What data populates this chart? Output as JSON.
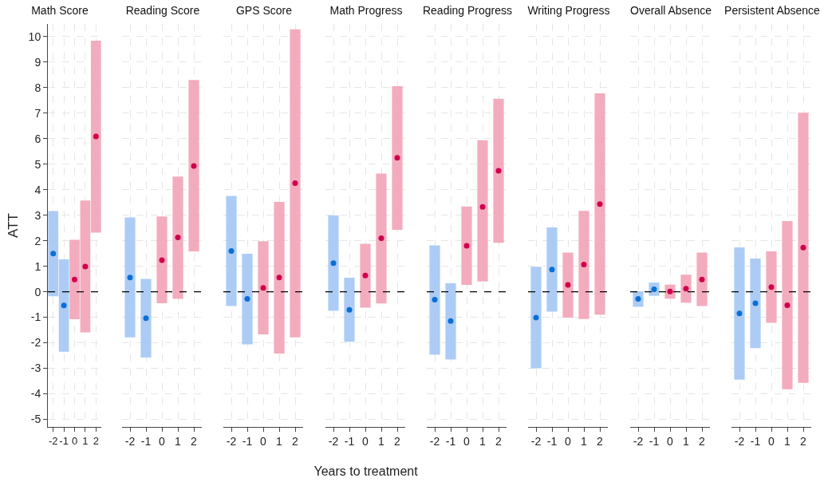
{
  "chart_data": [
    {
      "type": "bar",
      "title": "Math Score",
      "ylabel": "ATT",
      "categories": [
        "-2",
        "-1",
        "0",
        "1",
        "2"
      ],
      "ylim": [
        -5.3,
        10.5
      ],
      "yticks": [
        -5,
        -4,
        -3,
        -2,
        -1,
        0,
        1,
        2,
        3,
        4,
        5,
        6,
        7,
        8,
        9,
        10
      ],
      "grid": true,
      "ref_lines": [
        {
          "axis": "y",
          "value": 0,
          "color": "#000000",
          "line_style": "dashed"
        }
      ],
      "series": [
        {
          "type": "bar",
          "base": [
            -0.18,
            -2.35,
            -1.08,
            -1.59,
            2.32
          ],
          "values": [
            3.34,
            3.62,
            3.12,
            5.17,
            7.52
          ],
          "colors": [
            "#a3c6f4",
            "#a3c6f4",
            "#f2a3b6",
            "#f2a3b6",
            "#f2a3b6"
          ]
        },
        {
          "type": "scatter",
          "marker": "circle",
          "x": [
            "-2",
            "-1",
            "0",
            "1",
            "2"
          ],
          "values": [
            1.5,
            -0.54,
            0.48,
            0.99,
            6.09
          ],
          "colors": [
            "#0a6fd6",
            "#0a6fd6",
            "#d1004c",
            "#d1004c",
            "#d1004c"
          ]
        }
      ]
    },
    {
      "type": "bar",
      "title": "Reading Score",
      "tick_labels": "x",
      "categories": [
        "-2",
        "-1",
        "0",
        "1",
        "2"
      ],
      "ylim": [
        -5.3,
        10.5
      ],
      "yticks": [
        -5,
        -4,
        -3,
        -2,
        -1,
        0,
        1,
        2,
        3,
        4,
        5,
        6,
        7,
        8,
        9,
        10
      ],
      "grid": true,
      "ref_lines": [
        {
          "axis": "y",
          "value": 0,
          "color": "#000000",
          "line_style": "dashed"
        }
      ],
      "series": [
        {
          "type": "bar",
          "base": [
            -1.79,
            -2.58,
            -0.45,
            -0.28,
            1.58
          ],
          "values": [
            4.7,
            3.08,
            3.4,
            4.8,
            6.72
          ],
          "colors": [
            "#a3c6f4",
            "#a3c6f4",
            "#f2a3b6",
            "#f2a3b6",
            "#f2a3b6"
          ]
        },
        {
          "type": "scatter",
          "marker": "circle",
          "x": [
            "-2",
            "-1",
            "0",
            "1",
            "2"
          ],
          "values": [
            0.56,
            -1.04,
            1.24,
            2.13,
            4.93
          ],
          "colors": [
            "#0a6fd6",
            "#0a6fd6",
            "#d1004c",
            "#d1004c",
            "#d1004c"
          ]
        }
      ]
    },
    {
      "type": "bar",
      "title": "GPS Score",
      "tick_labels": "x",
      "categories": [
        "-2",
        "-1",
        "0",
        "1",
        "2"
      ],
      "ylim": [
        -5.3,
        10.5
      ],
      "yticks": [
        -5,
        -4,
        -3,
        -2,
        -1,
        0,
        1,
        2,
        3,
        4,
        5,
        6,
        7,
        8,
        9,
        10
      ],
      "grid": true,
      "ref_lines": [
        {
          "axis": "y",
          "value": 0,
          "color": "#000000",
          "line_style": "dashed"
        }
      ],
      "series": [
        {
          "type": "bar",
          "base": [
            -0.56,
            -2.06,
            -1.67,
            -2.42,
            -1.79
          ],
          "values": [
            4.32,
            3.55,
            3.65,
            5.94,
            12.08
          ],
          "colors": [
            "#a3c6f4",
            "#a3c6f4",
            "#f2a3b6",
            "#f2a3b6",
            "#f2a3b6"
          ]
        },
        {
          "type": "scatter",
          "marker": "circle",
          "x": [
            "-2",
            "-1",
            "0",
            "1",
            "2"
          ],
          "values": [
            1.6,
            -0.28,
            0.15,
            0.56,
            4.26
          ],
          "colors": [
            "#0a6fd6",
            "#0a6fd6",
            "#d1004c",
            "#d1004c",
            "#d1004c"
          ]
        }
      ]
    },
    {
      "type": "bar",
      "title": "Math Progress",
      "xlabel": "Years to treatment",
      "tick_labels": "x",
      "categories": [
        "-2",
        "-1",
        "0",
        "1",
        "2"
      ],
      "ylim": [
        -5.3,
        10.5
      ],
      "yticks": [
        -5,
        -4,
        -3,
        -2,
        -1,
        0,
        1,
        2,
        3,
        4,
        5,
        6,
        7,
        8,
        9,
        10
      ],
      "grid": true,
      "ref_lines": [
        {
          "axis": "y",
          "value": 0,
          "color": "#000000",
          "line_style": "dashed"
        }
      ],
      "series": [
        {
          "type": "bar",
          "base": [
            -0.75,
            -1.96,
            -0.62,
            -0.46,
            2.43
          ],
          "values": [
            3.74,
            2.51,
            2.5,
            5.09,
            5.63
          ],
          "colors": [
            "#a3c6f4",
            "#a3c6f4",
            "#f2a3b6",
            "#f2a3b6",
            "#f2a3b6"
          ]
        },
        {
          "type": "scatter",
          "marker": "circle",
          "x": [
            "-2",
            "-1",
            "0",
            "1",
            "2"
          ],
          "values": [
            1.12,
            -0.71,
            0.64,
            2.1,
            5.25
          ],
          "colors": [
            "#0a6fd6",
            "#0a6fd6",
            "#d1004c",
            "#d1004c",
            "#d1004c"
          ]
        }
      ]
    },
    {
      "type": "bar",
      "title": "Reading Progress",
      "tick_labels": "x",
      "categories": [
        "-2",
        "-1",
        "0",
        "1",
        "2"
      ],
      "ylim": [
        -5.3,
        10.5
      ],
      "yticks": [
        -5,
        -4,
        -3,
        -2,
        -1,
        0,
        1,
        2,
        3,
        4,
        5,
        6,
        7,
        8,
        9,
        10
      ],
      "grid": true,
      "ref_lines": [
        {
          "axis": "y",
          "value": 0,
          "color": "#000000",
          "line_style": "dashed"
        }
      ],
      "series": [
        {
          "type": "bar",
          "base": [
            -2.47,
            -2.66,
            0.27,
            0.4,
            1.92
          ],
          "values": [
            4.29,
            2.99,
            3.07,
            5.54,
            5.65
          ],
          "colors": [
            "#a3c6f4",
            "#a3c6f4",
            "#f2a3b6",
            "#f2a3b6",
            "#f2a3b6"
          ]
        },
        {
          "type": "scatter",
          "marker": "circle",
          "x": [
            "-2",
            "-1",
            "0",
            "1",
            "2"
          ],
          "values": [
            -0.31,
            -1.15,
            1.8,
            3.33,
            4.74
          ],
          "colors": [
            "#0a6fd6",
            "#0a6fd6",
            "#d1004c",
            "#d1004c",
            "#d1004c"
          ]
        }
      ]
    },
    {
      "type": "bar",
      "title": "Writing Progress",
      "tick_labels": "x",
      "categories": [
        "-2",
        "-1",
        "0",
        "1",
        "2"
      ],
      "ylim": [
        -5.3,
        10.5
      ],
      "yticks": [
        -5,
        -4,
        -3,
        -2,
        -1,
        0,
        1,
        2,
        3,
        4,
        5,
        6,
        7,
        8,
        9,
        10
      ],
      "grid": true,
      "ref_lines": [
        {
          "axis": "y",
          "value": 0,
          "color": "#000000",
          "line_style": "dashed"
        }
      ],
      "series": [
        {
          "type": "bar",
          "base": [
            -3.0,
            -0.78,
            -1.01,
            -1.07,
            -0.9
          ],
          "values": [
            3.98,
            3.3,
            2.55,
            4.24,
            8.68
          ],
          "colors": [
            "#a3c6f4",
            "#a3c6f4",
            "#f2a3b6",
            "#f2a3b6",
            "#f2a3b6"
          ]
        },
        {
          "type": "scatter",
          "marker": "circle",
          "x": [
            "-2",
            "-1",
            "0",
            "1",
            "2"
          ],
          "values": [
            -1.01,
            0.87,
            0.27,
            1.07,
            3.44
          ],
          "colors": [
            "#0a6fd6",
            "#0a6fd6",
            "#d1004c",
            "#d1004c",
            "#d1004c"
          ]
        }
      ]
    },
    {
      "type": "bar",
      "title": "Overall Absence",
      "tick_labels": "x",
      "categories": [
        "-2",
        "-1",
        "0",
        "1",
        "2"
      ],
      "ylim": [
        -5.3,
        10.5
      ],
      "yticks": [
        -5,
        -4,
        -3,
        -2,
        -1,
        0,
        1,
        2,
        3,
        4,
        5,
        6,
        7,
        8,
        9,
        10
      ],
      "grid": true,
      "ref_lines": [
        {
          "axis": "y",
          "value": 0,
          "color": "#000000",
          "line_style": "dashed"
        }
      ],
      "series": [
        {
          "type": "bar",
          "base": [
            -0.59,
            -0.16,
            -0.27,
            -0.43,
            -0.56
          ],
          "values": [
            0.61,
            0.52,
            0.55,
            1.1,
            2.1
          ],
          "colors": [
            "#a3c6f4",
            "#a3c6f4",
            "#f2a3b6",
            "#f2a3b6",
            "#f2a3b6"
          ]
        },
        {
          "type": "scatter",
          "marker": "circle",
          "x": [
            "-2",
            "-1",
            "0",
            "1",
            "2"
          ],
          "values": [
            -0.28,
            0.1,
            0.01,
            0.12,
            0.48
          ],
          "colors": [
            "#0a6fd6",
            "#0a6fd6",
            "#d1004c",
            "#d1004c",
            "#d1004c"
          ]
        }
      ]
    },
    {
      "type": "bar",
      "title": "Persistent Absence",
      "tick_labels": "x",
      "categories": [
        "-2",
        "-1",
        "0",
        "1",
        "2"
      ],
      "ylim": [
        -5.3,
        10.5
      ],
      "yticks": [
        -5,
        -4,
        -3,
        -2,
        -1,
        0,
        1,
        2,
        3,
        4,
        5,
        6,
        7,
        8,
        9,
        10
      ],
      "grid": true,
      "ref_lines": [
        {
          "axis": "y",
          "value": 0,
          "color": "#000000",
          "line_style": "dashed"
        }
      ],
      "series": [
        {
          "type": "bar",
          "base": [
            -3.45,
            -2.21,
            -1.22,
            -3.82,
            -3.57
          ],
          "values": [
            5.19,
            3.51,
            2.8,
            6.59,
            10.59
          ],
          "colors": [
            "#a3c6f4",
            "#a3c6f4",
            "#f2a3b6",
            "#f2a3b6",
            "#f2a3b6"
          ]
        },
        {
          "type": "scatter",
          "marker": "circle",
          "x": [
            "-2",
            "-1",
            "0",
            "1",
            "2"
          ],
          "values": [
            -0.85,
            -0.45,
            0.18,
            -0.53,
            1.73
          ],
          "colors": [
            "#0a6fd6",
            "#0a6fd6",
            "#d1004c",
            "#d1004c",
            "#d1004c"
          ]
        }
      ]
    }
  ]
}
